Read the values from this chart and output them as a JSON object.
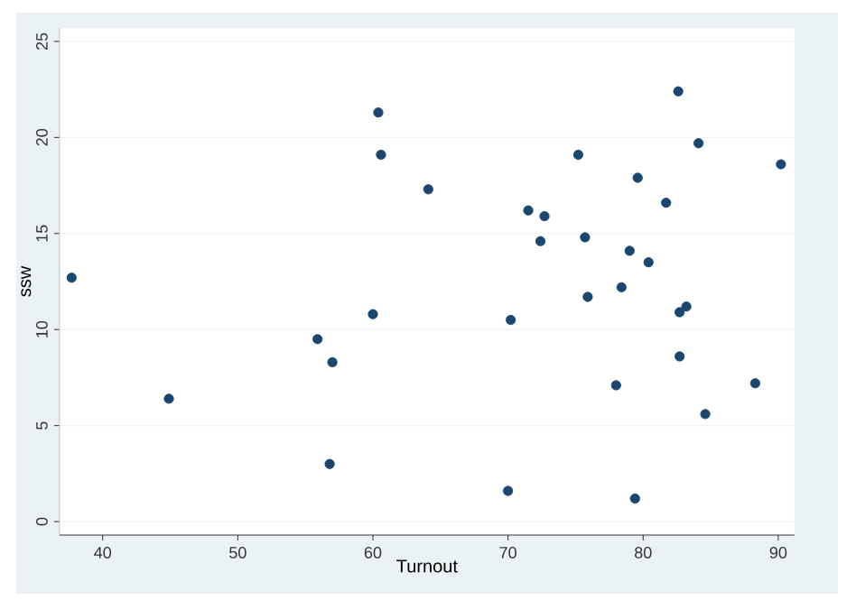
{
  "chart_data": {
    "type": "scatter",
    "xlabel": "Turnout",
    "ylabel": "ssw",
    "color": "#1a476f",
    "grid": "y",
    "xlim": [
      36.8,
      91.2
    ],
    "ylim": [
      -0.7,
      25.7
    ],
    "xticks": [
      40,
      50,
      60,
      70,
      80,
      90
    ],
    "yticks": [
      0,
      5,
      10,
      15,
      20,
      25
    ],
    "x": [
      37.7,
      44.9,
      60.4,
      60.6,
      55.9,
      60.0,
      57.0,
      56.8,
      64.1,
      82.6,
      84.1,
      75.2,
      90.2,
      79.6,
      81.7,
      71.5,
      72.7,
      72.4,
      75.7,
      79.0,
      80.4,
      78.4,
      75.9,
      82.7,
      83.2,
      70.2,
      82.7,
      78.0,
      88.3,
      84.6,
      70.0,
      79.4
    ],
    "values": [
      12.7,
      6.4,
      21.3,
      19.1,
      9.5,
      10.8,
      8.3,
      3.0,
      17.3,
      22.4,
      19.7,
      19.1,
      18.6,
      17.9,
      16.6,
      16.2,
      15.9,
      14.6,
      14.8,
      14.1,
      13.5,
      12.2,
      11.7,
      10.9,
      11.2,
      10.5,
      8.6,
      7.1,
      7.2,
      5.6,
      1.6,
      1.2
    ]
  }
}
